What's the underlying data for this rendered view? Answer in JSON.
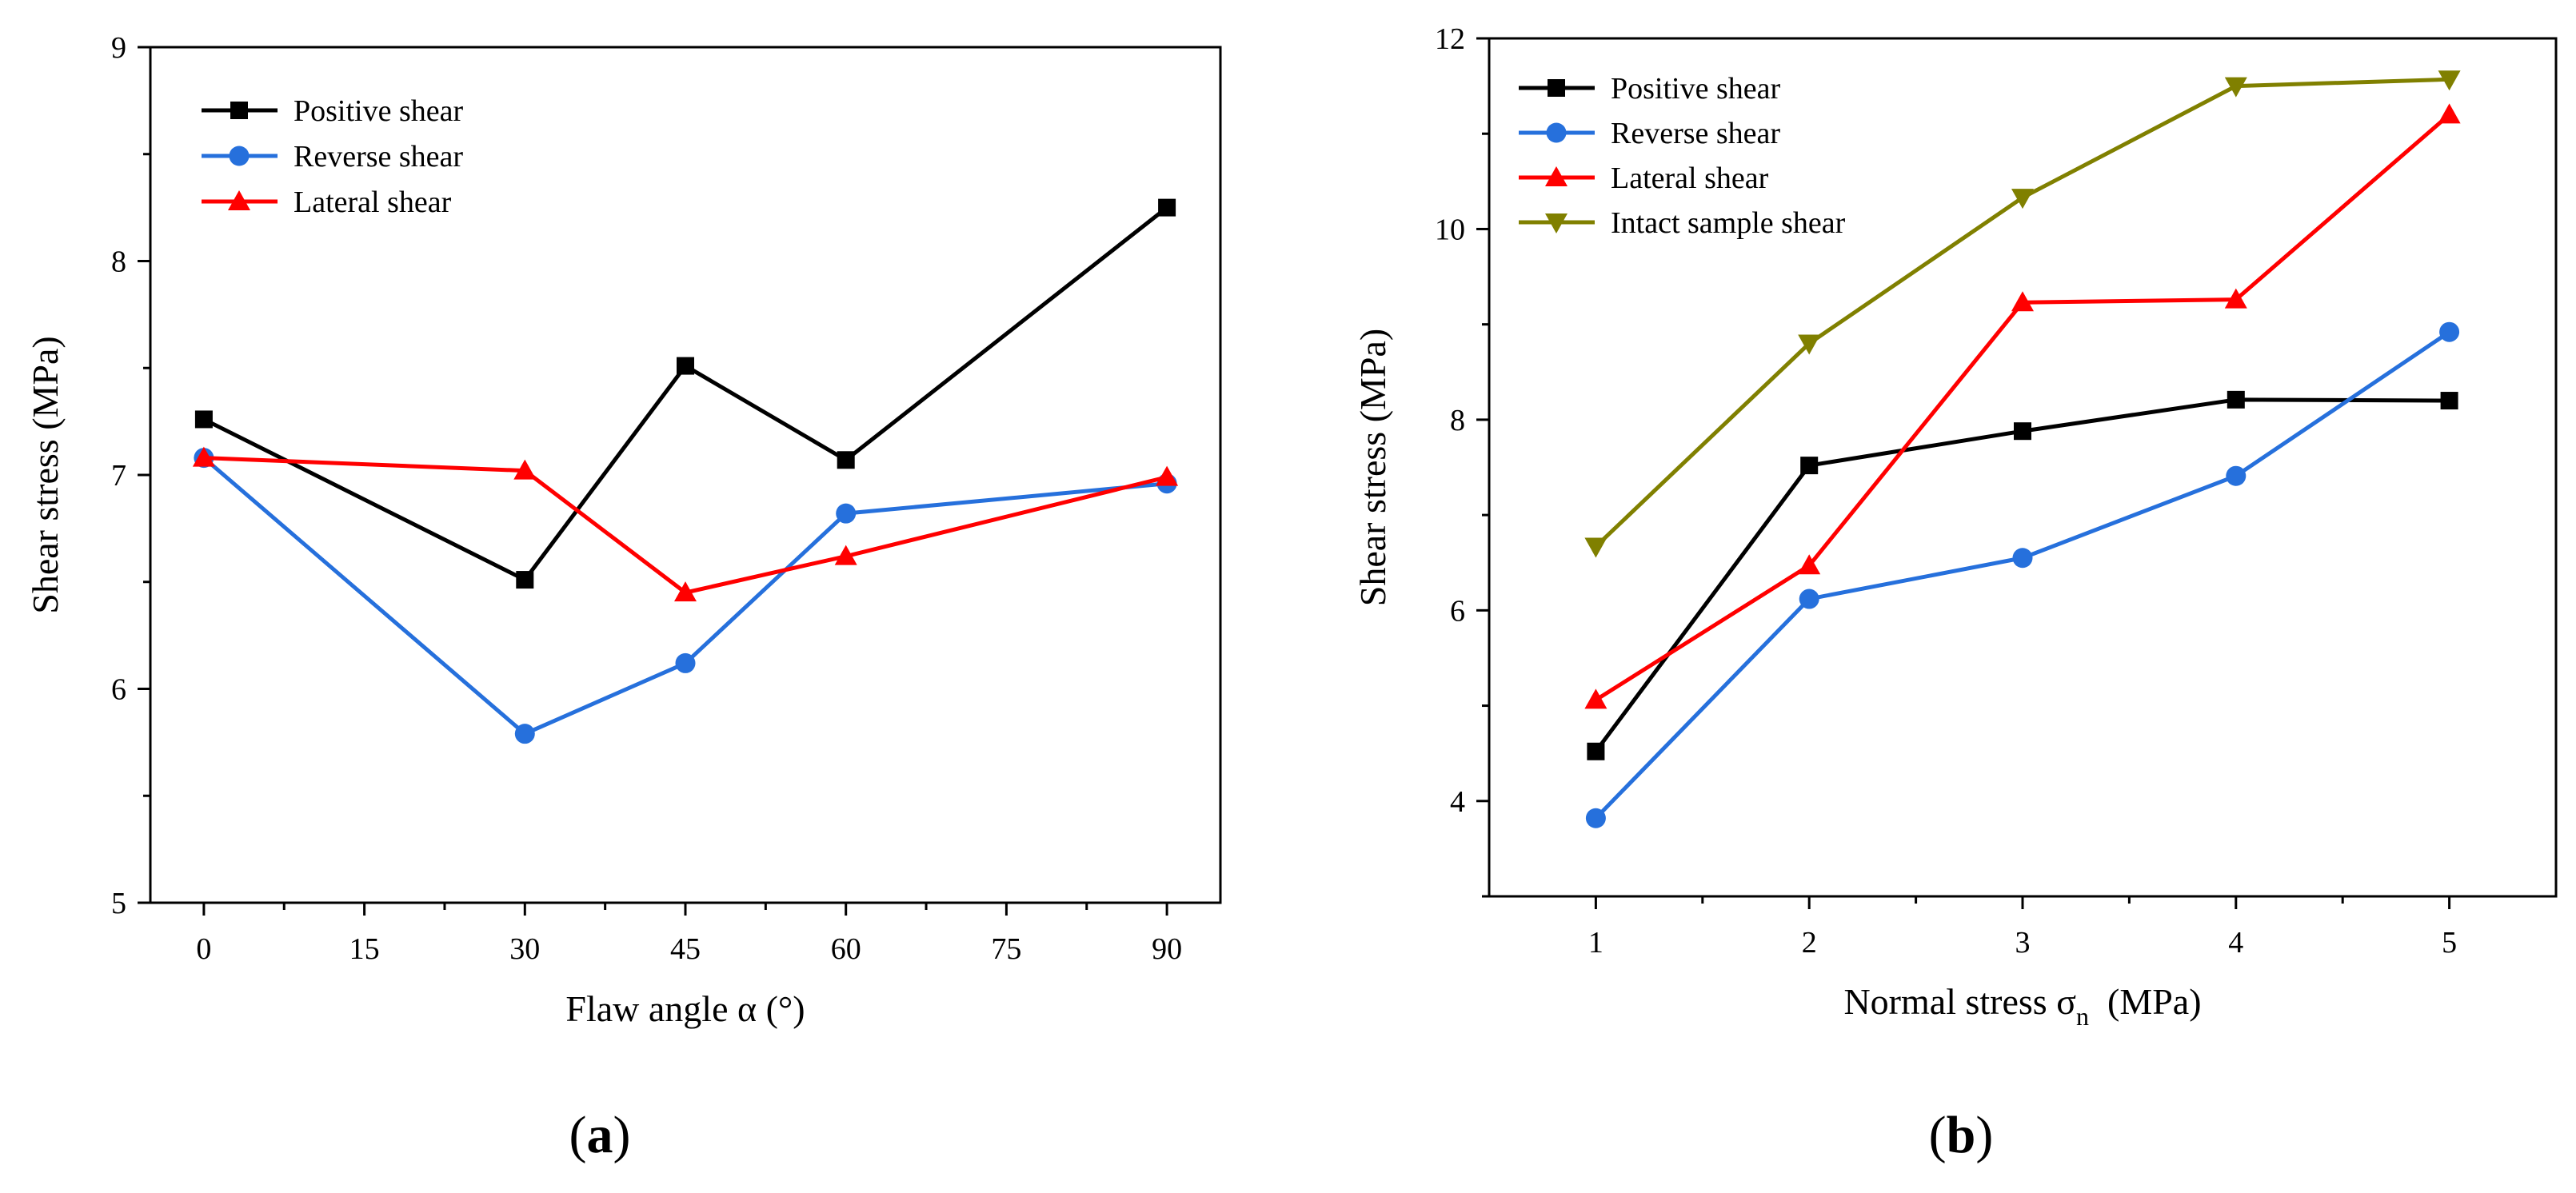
{
  "chart_data": [
    {
      "type": "line",
      "panel": "a",
      "panel_label": "a",
      "x": [
        0,
        30,
        45,
        60,
        90
      ],
      "xlabel": "Flaw angle  α (°)",
      "ylabel": "Shear stress (MPa)",
      "xlim": [
        -5,
        95
      ],
      "ylim": [
        5,
        9
      ],
      "xticks": [
        0,
        15,
        30,
        45,
        60,
        75,
        90
      ],
      "yticks": [
        5,
        6,
        7,
        8,
        9
      ],
      "grid": false,
      "legend_position": "top-left",
      "series": [
        {
          "name": "Positive shear",
          "color": "#000000",
          "marker": "square",
          "values": [
            7.26,
            6.51,
            7.51,
            7.07,
            8.25
          ]
        },
        {
          "name": "Reverse shear",
          "color": "#2670dc",
          "marker": "circle",
          "values": [
            7.08,
            5.79,
            6.12,
            6.82,
            6.96
          ]
        },
        {
          "name": "Lateral shear",
          "color": "#ff0000",
          "marker": "triangle-up",
          "values": [
            7.08,
            7.02,
            6.45,
            6.62,
            6.99
          ]
        }
      ]
    },
    {
      "type": "line",
      "panel": "b",
      "panel_label": "b",
      "x": [
        1,
        2,
        3,
        4,
        5
      ],
      "xlabel": "Normal stress  σ",
      "xlabel_subscript": "n",
      "xlabel_suffix": "  (MPa)",
      "ylabel": "Shear stress (MPa)",
      "xlim": [
        0.5,
        5.5
      ],
      "ylim": [
        3,
        12
      ],
      "xticks": [
        1,
        2,
        3,
        4,
        5
      ],
      "yticks": [
        4,
        6,
        8,
        10,
        12
      ],
      "grid": false,
      "legend_position": "top-left",
      "series": [
        {
          "name": "Positive shear",
          "color": "#000000",
          "marker": "square",
          "values": [
            4.52,
            7.52,
            7.88,
            8.21,
            8.2
          ]
        },
        {
          "name": "Reverse shear",
          "color": "#2670dc",
          "marker": "circle",
          "values": [
            3.82,
            6.12,
            6.55,
            7.41,
            8.92
          ]
        },
        {
          "name": "Lateral shear",
          "color": "#ff0000",
          "marker": "triangle-up",
          "values": [
            5.06,
            6.47,
            9.23,
            9.26,
            11.2
          ]
        },
        {
          "name": "Intact sample shear",
          "color": "#808000",
          "marker": "triangle-down",
          "values": [
            6.67,
            8.8,
            10.33,
            11.5,
            11.57
          ]
        }
      ]
    }
  ]
}
